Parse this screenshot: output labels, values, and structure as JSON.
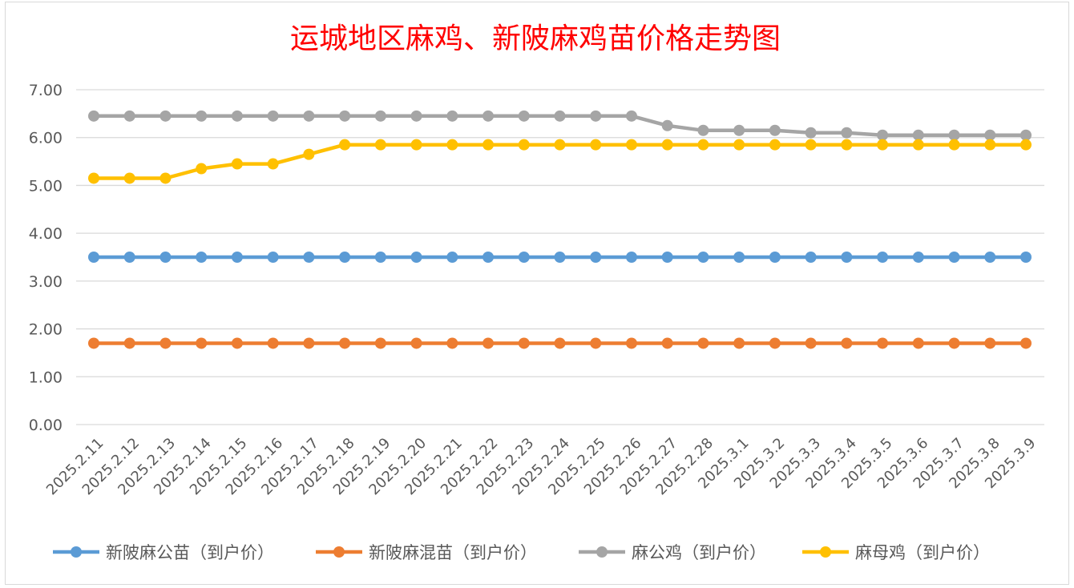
{
  "chart_data": {
    "type": "line",
    "title": "运城地区麻鸡、新陂麻鸡苗价格走势图",
    "xlabel": "",
    "ylabel": "",
    "ylim": [
      0,
      7
    ],
    "yticks": [
      "0.00",
      "1.00",
      "2.00",
      "3.00",
      "4.00",
      "5.00",
      "6.00",
      "7.00"
    ],
    "grid": true,
    "legend_position": "bottom",
    "categories": [
      "2025.2.11",
      "2025.2.12",
      "2025.2.13",
      "2025.2.14",
      "2025.2.15",
      "2025.2.16",
      "2025.2.17",
      "2025.2.18",
      "2025.2.19",
      "2025.2.20",
      "2025.2.21",
      "2025.2.22",
      "2025.2.23",
      "2025.2.24",
      "2025.2.25",
      "2025.2.26",
      "2025.2.27",
      "2025.2.28",
      "2025.3.1",
      "2025.3.2",
      "2025.3.3",
      "2025.3.4",
      "2025.3.5",
      "2025.3.6",
      "2025.3.7",
      "2025.3.8",
      "2025.3.9"
    ],
    "series": [
      {
        "name": "新陂麻公苗（到户价）",
        "color": "#5b9bd5",
        "values": [
          3.5,
          3.5,
          3.5,
          3.5,
          3.5,
          3.5,
          3.5,
          3.5,
          3.5,
          3.5,
          3.5,
          3.5,
          3.5,
          3.5,
          3.5,
          3.5,
          3.5,
          3.5,
          3.5,
          3.5,
          3.5,
          3.5,
          3.5,
          3.5,
          3.5,
          3.5,
          3.5
        ]
      },
      {
        "name": "新陂麻混苗（到户价）",
        "color": "#ed7d31",
        "values": [
          1.7,
          1.7,
          1.7,
          1.7,
          1.7,
          1.7,
          1.7,
          1.7,
          1.7,
          1.7,
          1.7,
          1.7,
          1.7,
          1.7,
          1.7,
          1.7,
          1.7,
          1.7,
          1.7,
          1.7,
          1.7,
          1.7,
          1.7,
          1.7,
          1.7,
          1.7,
          1.7
        ]
      },
      {
        "name": "麻公鸡（到户价）",
        "color": "#a5a5a5",
        "values": [
          6.45,
          6.45,
          6.45,
          6.45,
          6.45,
          6.45,
          6.45,
          6.45,
          6.45,
          6.45,
          6.45,
          6.45,
          6.45,
          6.45,
          6.45,
          6.45,
          6.25,
          6.15,
          6.15,
          6.15,
          6.1,
          6.1,
          6.05,
          6.05,
          6.05,
          6.05,
          6.05
        ]
      },
      {
        "name": "麻母鸡（到户价）",
        "color": "#ffc000",
        "values": [
          5.15,
          5.15,
          5.15,
          5.35,
          5.45,
          5.45,
          5.65,
          5.85,
          5.85,
          5.85,
          5.85,
          5.85,
          5.85,
          5.85,
          5.85,
          5.85,
          5.85,
          5.85,
          5.85,
          5.85,
          5.85,
          5.85,
          5.85,
          5.85,
          5.85,
          5.85,
          5.85
        ]
      }
    ]
  }
}
